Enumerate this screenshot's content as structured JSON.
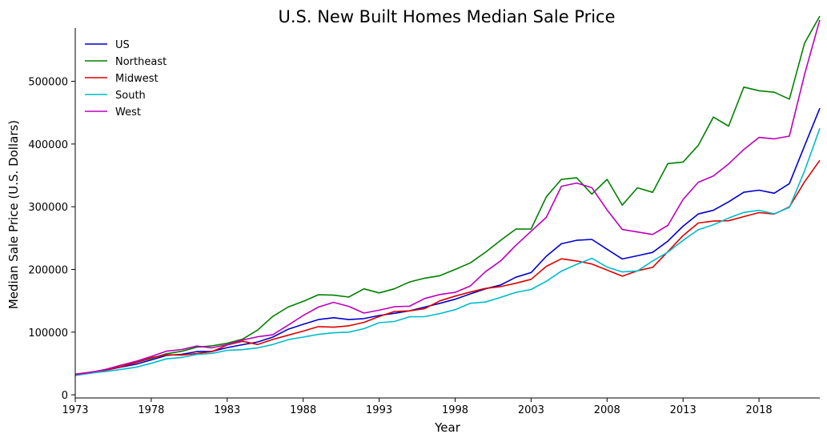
{
  "chart_data": {
    "type": "line",
    "title": "U.S. New Built Homes Median Sale Price",
    "xlabel": "Year",
    "ylabel": "Median Sale Price (U.S. Dollars)",
    "xlim": [
      1973,
      2022
    ],
    "ylim": [
      -5000,
      585000
    ],
    "xticks": [
      1973,
      1978,
      1983,
      1988,
      1993,
      1998,
      2003,
      2008,
      2013,
      2018
    ],
    "yticks": [
      0,
      100000,
      200000,
      300000,
      400000,
      500000
    ],
    "grid": false,
    "legend_position": "top-left",
    "x": [
      1973,
      1974,
      1975,
      1976,
      1977,
      1978,
      1979,
      1980,
      1981,
      1982,
      1983,
      1984,
      1985,
      1986,
      1987,
      1988,
      1989,
      1990,
      1991,
      1992,
      1993,
      1994,
      1995,
      1996,
      1997,
      1998,
      1999,
      2000,
      2001,
      2002,
      2003,
      2004,
      2005,
      2006,
      2007,
      2008,
      2009,
      2010,
      2011,
      2012,
      2013,
      2014,
      2015,
      2016,
      2017,
      2018,
      2019,
      2020,
      2021,
      2022
    ],
    "series": [
      {
        "name": "US",
        "color": "#0000cc",
        "values": [
          32500,
          35900,
          39300,
          44200,
          48800,
          55700,
          62900,
          64600,
          68900,
          69300,
          75300,
          79900,
          84300,
          92000,
          104500,
          112500,
          120000,
          122900,
          120000,
          121500,
          126500,
          130000,
          133900,
          140000,
          146000,
          152500,
          161000,
          169000,
          175200,
          187600,
          195000,
          221000,
          240900,
          246500,
          247900,
          232100,
          216700,
          221800,
          227200,
          245200,
          268900,
          288500,
          294300,
          307800,
          323100,
          326400,
          321500,
          336900,
          397100,
          457000
        ]
      },
      {
        "name": "Northeast",
        "color": "#008000",
        "values": [
          32000,
          36000,
          39600,
          47300,
          51600,
          58100,
          65500,
          69500,
          76000,
          78200,
          82200,
          88600,
          103300,
          125000,
          140000,
          149000,
          159600,
          159000,
          155900,
          169000,
          162600,
          169000,
          180000,
          186000,
          190000,
          200000,
          210500,
          227400,
          246400,
          264300,
          264500,
          315800,
          343800,
          346000,
          320200,
          343600,
          302500,
          330200,
          322900,
          368800,
          371200,
          397800,
          443000,
          428600,
          490800,
          485000,
          482600,
          471600,
          561000,
          604000
        ]
      },
      {
        "name": "Midwest",
        "color": "#dd0000",
        "values": [
          32900,
          36100,
          39600,
          44800,
          51500,
          59200,
          63900,
          63400,
          65900,
          68900,
          79500,
          85400,
          80300,
          88300,
          95000,
          101600,
          108800,
          107900,
          110000,
          115600,
          125000,
          132900,
          134000,
          137500,
          149900,
          157500,
          164000,
          169700,
          172600,
          178000,
          184300,
          205000,
          216900,
          213500,
          208600,
          198900,
          189200,
          197800,
          203300,
          228300,
          254000,
          274000,
          277100,
          277600,
          284300,
          290700,
          288300,
          299700,
          339700,
          374000
        ]
      },
      {
        "name": "South",
        "color": "#00bbcc",
        "values": [
          30900,
          34500,
          37300,
          40500,
          44100,
          50300,
          57300,
          59600,
          64400,
          66100,
          70900,
          72000,
          75000,
          80200,
          88000,
          92000,
          96400,
          99000,
          100000,
          105500,
          115000,
          116900,
          124500,
          124800,
          129600,
          135800,
          145900,
          148000,
          155400,
          163400,
          168100,
          181100,
          197300,
          208200,
          217700,
          203700,
          196000,
          197500,
          213500,
          227600,
          246300,
          263300,
          271200,
          282000,
          290900,
          294300,
          288700,
          298900,
          357200,
          425000
        ]
      },
      {
        "name": "West",
        "color": "#bb00bb",
        "values": [
          32400,
          35800,
          40600,
          47200,
          53500,
          61300,
          69600,
          72300,
          77800,
          75000,
          80100,
          87300,
          92600,
          95700,
          111000,
          126500,
          139900,
          147500,
          141100,
          130400,
          135000,
          140400,
          141400,
          153600,
          160000,
          163500,
          173600,
          196400,
          213600,
          238500,
          260900,
          283100,
          332600,
          337700,
          330400,
          294800,
          263700,
          259700,
          255800,
          270200,
          311600,
          339000,
          349000,
          368300,
          391300,
          410600,
          408200,
          412600,
          511100,
          598000
        ]
      }
    ]
  }
}
